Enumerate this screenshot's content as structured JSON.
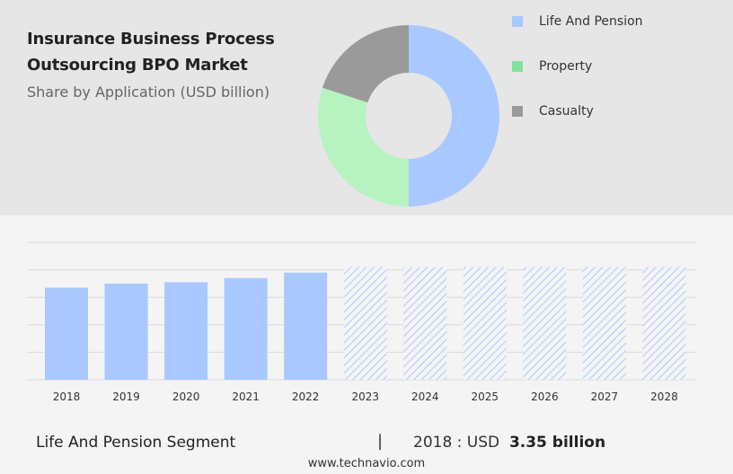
{
  "header": {
    "title_line_1": "Insurance Business Process",
    "title_line_2": "Outsourcing BPO Market",
    "subtitle": "Share by Application (USD billion)"
  },
  "legend": [
    {
      "label": "Life And Pension",
      "color": "#a9c8ff"
    },
    {
      "label": "Property",
      "color": "#7fe39a"
    },
    {
      "label": "Casualty",
      "color": "#9a9a9a"
    }
  ],
  "footer": {
    "segment": "Life And Pension Segment",
    "separator": "|",
    "year_label": "2018 : USD",
    "amount": "3.35 billion",
    "source": "www.technavio.com"
  },
  "chart_data": [
    {
      "type": "pie",
      "variant": "donut",
      "labels": [
        "Life And Pension",
        "Property",
        "Casualty"
      ],
      "values": [
        50,
        30,
        20
      ],
      "colors": [
        "#a9c8ff",
        "#b6f3c1",
        "#9a9a9a"
      ],
      "legend_placement": "right"
    },
    {
      "type": "bar",
      "categories": [
        "2018",
        "2019",
        "2020",
        "2021",
        "2022",
        "2023",
        "2024",
        "2025",
        "2026",
        "2027",
        "2028"
      ],
      "values": [
        3.35,
        3.5,
        3.55,
        3.7,
        3.9,
        null,
        null,
        null,
        null,
        null,
        null
      ],
      "forecast_categories": [
        "2023",
        "2024",
        "2025",
        "2026",
        "2027",
        "2028"
      ],
      "forecast_values": [
        4.1,
        4.1,
        4.1,
        4.1,
        4.1,
        4.1
      ],
      "ylim": [
        0,
        5
      ],
      "grid": true,
      "bar_color": "#a9c8ff",
      "forecast_style": "hatched"
    }
  ]
}
